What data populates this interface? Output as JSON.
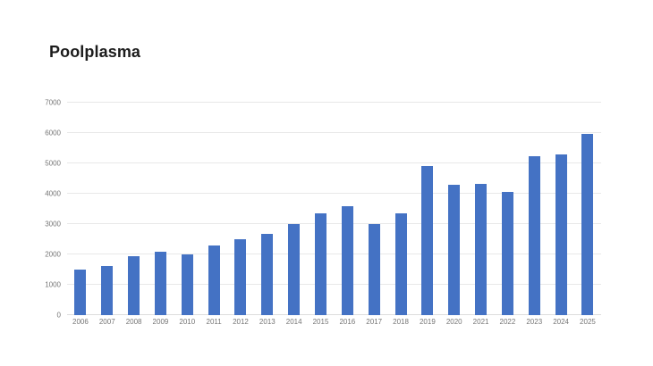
{
  "page": {
    "background": "#ffffff"
  },
  "chart_data": {
    "type": "bar",
    "title": "Poolplasma",
    "categories": [
      "2006",
      "2007",
      "2008",
      "2009",
      "2010",
      "2011",
      "2012",
      "2013",
      "2014",
      "2015",
      "2016",
      "2017",
      "2018",
      "2019",
      "2020",
      "2021",
      "2022",
      "2023",
      "2024",
      "2025"
    ],
    "values": [
      1500,
      1630,
      1950,
      2080,
      2000,
      2300,
      2500,
      2690,
      3010,
      3360,
      3580,
      3010,
      3340,
      4900,
      4300,
      4330,
      4070,
      5250,
      5280,
      5960
    ],
    "xlabel": "",
    "ylabel": "",
    "ylim": [
      0,
      7000
    ],
    "yticks": [
      0,
      1000,
      2000,
      3000,
      4000,
      5000,
      6000,
      7000
    ],
    "grid": true,
    "legend": false,
    "bar_color": "#4472c4",
    "axis_label_color": "#757575",
    "gridline_color": "#e8e8e8",
    "title_color": "#1c1c1c"
  }
}
